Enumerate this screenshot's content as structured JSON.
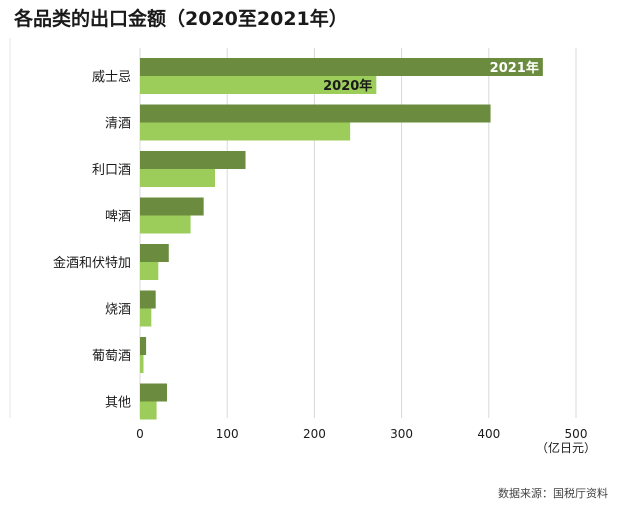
{
  "colors": {
    "series_2021": "#6b8c3e",
    "series_2020": "#9ccc5a",
    "grid": "#d9d9d9",
    "text": "#1a1a1a"
  },
  "chart_data": {
    "type": "bar",
    "orientation": "horizontal",
    "title": "各品类的出口金额（2020至2021年）",
    "xlabel": "（亿日元）",
    "ylabel": "",
    "xlim": [
      0,
      500
    ],
    "xticks": [
      0,
      100,
      200,
      300,
      400,
      500
    ],
    "grid": true,
    "categories": [
      "威士忌",
      "清酒",
      "利口酒",
      "啤酒",
      "金酒和伏特加",
      "烧酒",
      "葡萄酒",
      "其他"
    ],
    "series": [
      {
        "name": "2021年",
        "values": [
          462,
          402,
          121,
          73,
          33,
          18,
          7,
          31
        ]
      },
      {
        "name": "2020年",
        "values": [
          271,
          241,
          86,
          58,
          21,
          13,
          4,
          19
        ]
      }
    ],
    "source": "数据来源：国税厅资料"
  }
}
